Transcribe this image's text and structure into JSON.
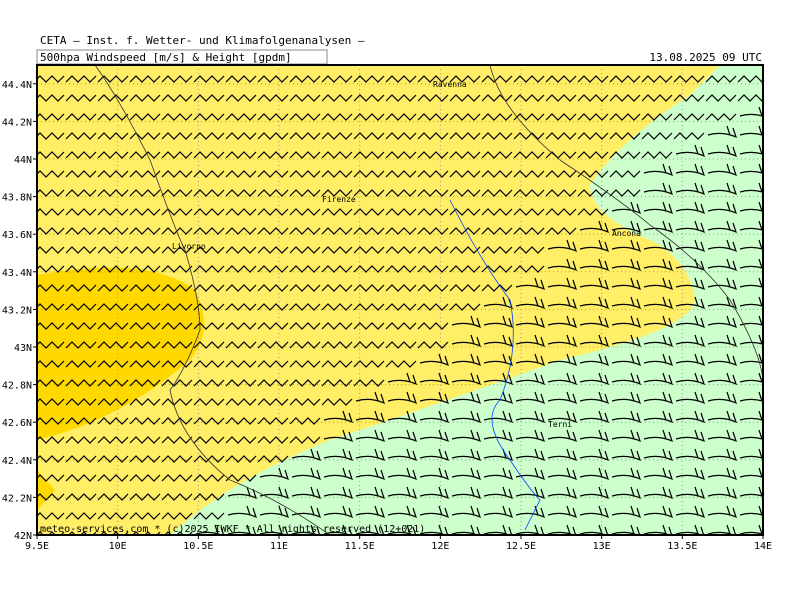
{
  "header": {
    "title": "CETA – Inst. f. Wetter- und Klimafolgenanalysen –",
    "subtitle": "500hpa Windspeed [m/s] & Height [gpdm]",
    "datetime": "13.08.2025 09 UTC"
  },
  "map": {
    "xlim": [
      9.5,
      14
    ],
    "ylim": [
      42,
      44.5
    ],
    "xticks": [
      {
        "value": 9.5,
        "label": "9.5E"
      },
      {
        "value": 10,
        "label": "10E"
      },
      {
        "value": 10.5,
        "label": "10.5E"
      },
      {
        "value": 11,
        "label": "11E"
      },
      {
        "value": 11.5,
        "label": "11.5E"
      },
      {
        "value": 12,
        "label": "12E"
      },
      {
        "value": 12.5,
        "label": "12.5E"
      },
      {
        "value": 13,
        "label": "13E"
      },
      {
        "value": 13.5,
        "label": "13.5E"
      },
      {
        "value": 14,
        "label": "14E"
      }
    ],
    "yticks": [
      {
        "value": 42,
        "label": "42N"
      },
      {
        "value": 42.2,
        "label": "42.2N"
      },
      {
        "value": 42.4,
        "label": "42.4N"
      },
      {
        "value": 42.6,
        "label": "42.6N"
      },
      {
        "value": 42.8,
        "label": "42.8N"
      },
      {
        "value": 43,
        "label": "43N"
      },
      {
        "value": 43.2,
        "label": "43.2N"
      },
      {
        "value": 43.4,
        "label": "43.4N"
      },
      {
        "value": 43.6,
        "label": "43.6N"
      },
      {
        "value": 43.8,
        "label": "43.8N"
      },
      {
        "value": 44,
        "label": "44N"
      },
      {
        "value": 44.2,
        "label": "44.2N"
      },
      {
        "value": 44.4,
        "label": "44.4N"
      }
    ],
    "cities": [
      "Ravenna",
      "Firenze",
      "Livorno",
      "Ancona",
      "Terni"
    ],
    "footer": "meteo-services.com * (c)2025 IWKF * All rights reserved (12+021)"
  }
}
